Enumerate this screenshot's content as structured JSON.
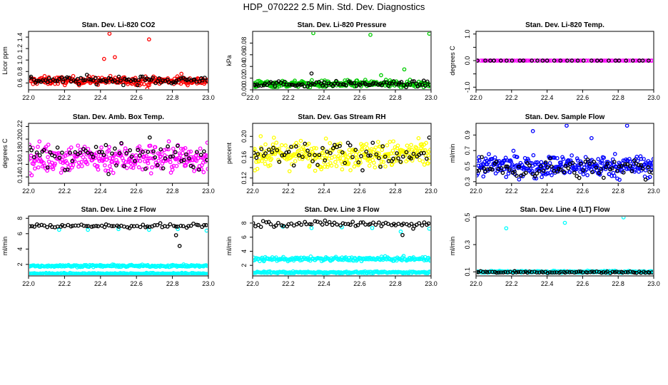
{
  "main_title": "HDP_070222  2.5 Min. Std. Dev. Diagnostics",
  "colors": {
    "black": "#000000",
    "red": "#ff0000",
    "green": "#00cc00",
    "magenta": "#ff00ff",
    "yellow": "#ffff00",
    "blue": "#0000ff",
    "cyan": "#00ffff"
  },
  "chart_data": [
    {
      "type": "scatter",
      "title": "Stan. Dev. Li-820 CO2",
      "ylabel": "Licor ppm",
      "xlim": [
        22.0,
        23.0
      ],
      "ylim": [
        0.48,
        1.5
      ],
      "xticks": [
        22.0,
        22.2,
        22.4,
        22.6,
        22.8,
        23.0
      ],
      "xtick_labels": [
        "22.0",
        "22.2",
        "22.4",
        "22.6",
        "22.8",
        "23.0"
      ],
      "yticks": [
        0.6,
        0.8,
        1.0,
        1.2,
        1.4
      ],
      "ytick_labels": [
        "0.6",
        "0.8",
        "1.0",
        "1.2",
        "1.4"
      ],
      "series": [
        {
          "name": "red",
          "color": "red",
          "base": 0.64,
          "noise": 0.06,
          "n": 260,
          "outliers": [
            [
              22.45,
              1.46
            ],
            [
              22.67,
              1.36
            ],
            [
              22.48,
              1.05
            ],
            [
              22.42,
              1.02
            ],
            [
              22.85,
              0.76
            ],
            [
              22.66,
              0.5
            ]
          ]
        },
        {
          "name": "black",
          "color": "black",
          "base": 0.65,
          "noise": 0.06,
          "n": 90,
          "outliers": []
        }
      ]
    },
    {
      "type": "scatter",
      "title": "Stan. Dev. Li-820 Pressure",
      "ylabel": "kPa",
      "xlim": [
        22.0,
        23.0
      ],
      "ylim": [
        0.0,
        0.1
      ],
      "xticks": [
        22.0,
        22.2,
        22.4,
        22.6,
        22.8,
        23.0
      ],
      "xtick_labels": [
        "22.0",
        "22.2",
        "22.4",
        "22.6",
        "22.8",
        "23.0"
      ],
      "yticks": [
        0.0,
        0.02,
        0.04,
        0.06,
        0.08
      ],
      "ytick_labels": [
        "0.00",
        "0.02",
        "0.04",
        "0.06",
        "0.08"
      ],
      "series": [
        {
          "name": "green",
          "color": "green",
          "base": 0.01,
          "noise": 0.005,
          "n": 260,
          "outliers": [
            [
              22.34,
              0.097
            ],
            [
              22.66,
              0.094
            ],
            [
              22.99,
              0.096
            ],
            [
              22.85,
              0.035
            ],
            [
              22.72,
              0.025
            ]
          ]
        },
        {
          "name": "black",
          "color": "black",
          "base": 0.01,
          "noise": 0.004,
          "n": 90,
          "outliers": [
            [
              22.33,
              0.028
            ]
          ]
        }
      ]
    },
    {
      "type": "scatter",
      "title": "Stan. Dev. Li-820 Temp.",
      "ylabel": "degrees C",
      "xlim": [
        22.0,
        23.0
      ],
      "ylim": [
        -1.1,
        1.1
      ],
      "xticks": [
        22.0,
        22.2,
        22.4,
        22.6,
        22.8,
        23.0
      ],
      "xtick_labels": [
        "22.0",
        "22.2",
        "22.4",
        "22.6",
        "22.8",
        "23.0"
      ],
      "yticks": [
        -1.0,
        -0.5,
        0.0,
        0.5,
        1.0
      ],
      "ytick_labels": [
        "-1.0",
        "0.0",
        "1.0"
      ],
      "series": [
        {
          "name": "magenta",
          "color": "magenta",
          "base": 0.0,
          "noise": 0.0,
          "n": 90,
          "outliers": []
        },
        {
          "name": "black",
          "color": "black",
          "base": 0.0,
          "noise": 0.0,
          "n": 30,
          "outliers": []
        }
      ]
    },
    {
      "type": "scatter",
      "title": "Stan. Dev. Amb. Box Temp.",
      "ylabel": "degrees C",
      "xlim": [
        22.0,
        23.0
      ],
      "ylim": [
        0.13,
        0.225
      ],
      "xticks": [
        22.0,
        22.2,
        22.4,
        22.6,
        22.8,
        23.0
      ],
      "xtick_labels": [
        "22.0",
        "22.2",
        "22.4",
        "22.6",
        "22.8",
        "23.0"
      ],
      "yticks": [
        0.14,
        0.16,
        0.18,
        0.2,
        0.22
      ],
      "ytick_labels": [
        "0.14",
        "0.16",
        "0.18",
        "0.20",
        "0.22"
      ],
      "series": [
        {
          "name": "magenta",
          "color": "magenta",
          "base": 0.17,
          "noise": 0.02,
          "n": 300,
          "outliers": []
        },
        {
          "name": "black",
          "color": "black",
          "base": 0.172,
          "noise": 0.018,
          "n": 70,
          "outliers": []
        }
      ]
    },
    {
      "type": "scatter",
      "title": "Stan. Dev. Gas Stream RH",
      "ylabel": "percent",
      "xlim": [
        22.0,
        23.0
      ],
      "ylim": [
        0.11,
        0.225
      ],
      "xticks": [
        22.0,
        22.2,
        22.4,
        22.6,
        22.8,
        23.0
      ],
      "xtick_labels": [
        "22.0",
        "22.2",
        "22.4",
        "22.6",
        "22.8",
        "23.0"
      ],
      "yticks": [
        0.12,
        0.14,
        0.16,
        0.18,
        0.2
      ],
      "ytick_labels": [
        "0.12",
        "0.16",
        "0.20"
      ],
      "series": [
        {
          "name": "yellow",
          "color": "yellow",
          "base": 0.165,
          "noise": 0.022,
          "n": 320,
          "outliers": []
        },
        {
          "name": "black",
          "color": "black",
          "base": 0.165,
          "noise": 0.02,
          "n": 70,
          "outliers": []
        }
      ]
    },
    {
      "type": "scatter",
      "title": "Stan. Dev. Sample Flow",
      "ylabel": "ml/min",
      "xlim": [
        22.0,
        23.0
      ],
      "ylim": [
        0.28,
        1.05
      ],
      "xticks": [
        22.0,
        22.2,
        22.4,
        22.6,
        22.8,
        23.0
      ],
      "xtick_labels": [
        "22.0",
        "22.2",
        "22.4",
        "22.6",
        "22.8",
        "23.0"
      ],
      "yticks": [
        0.3,
        0.5,
        0.7,
        0.9
      ],
      "ytick_labels": [
        "0.3",
        "0.5",
        "0.7",
        "0.9"
      ],
      "series": [
        {
          "name": "blue",
          "color": "blue",
          "base": 0.5,
          "noise": 0.12,
          "n": 320,
          "outliers": [
            [
              22.32,
              0.95
            ],
            [
              22.51,
              1.02
            ],
            [
              22.85,
              1.02
            ],
            [
              22.65,
              0.86
            ]
          ]
        },
        {
          "name": "black",
          "color": "black",
          "base": 0.47,
          "noise": 0.11,
          "n": 80,
          "outliers": []
        }
      ]
    },
    {
      "type": "scatter",
      "title": "Stan. Dev. Line 2 Flow",
      "ylabel": "ml/min",
      "xlim": [
        22.0,
        23.0
      ],
      "ylim": [
        0.5,
        8.3
      ],
      "xticks": [
        22.0,
        22.2,
        22.4,
        22.6,
        22.8,
        23.0
      ],
      "xtick_labels": [
        "22.0",
        "22.2",
        "22.4",
        "22.6",
        "22.8",
        "23.0"
      ],
      "yticks": [
        2,
        4,
        6,
        8
      ],
      "ytick_labels": [
        "2",
        "4",
        "6",
        "8"
      ],
      "series": [
        {
          "name": "cyan-upper",
          "color": "cyan",
          "base": 1.8,
          "noise": 0.12,
          "n": 200,
          "outliers": [
            [
              22.17,
              6.5
            ],
            [
              22.33,
              6.5
            ],
            [
              22.5,
              6.6
            ],
            [
              22.67,
              6.5
            ],
            [
              22.83,
              6.6
            ],
            [
              22.99,
              6.4
            ]
          ]
        },
        {
          "name": "cyan-lower",
          "color": "cyan",
          "base": 0.8,
          "noise": 0.08,
          "n": 200,
          "outliers": []
        },
        {
          "name": "black",
          "color": "black",
          "base": 7.0,
          "noise": 0.25,
          "n": 70,
          "outliers": [
            [
              22.84,
              4.4
            ],
            [
              22.82,
              5.8
            ]
          ]
        }
      ]
    },
    {
      "type": "scatter",
      "title": "Stan. Dev. Line 3 Flow",
      "ylabel": "ml/min",
      "xlim": [
        22.0,
        23.0
      ],
      "ylim": [
        0.5,
        9.0
      ],
      "xticks": [
        22.0,
        22.2,
        22.4,
        22.6,
        22.8,
        23.0
      ],
      "xtick_labels": [
        "22.0",
        "22.2",
        "22.4",
        "22.6",
        "22.8",
        "23.0"
      ],
      "yticks": [
        2,
        4,
        6,
        8
      ],
      "ytick_labels": [
        "2",
        "4",
        "6",
        "8"
      ],
      "series": [
        {
          "name": "cyan-upper",
          "color": "cyan",
          "base": 2.9,
          "noise": 0.25,
          "n": 200,
          "outliers": [
            [
              22.17,
              7.5
            ],
            [
              22.33,
              7.3
            ],
            [
              22.5,
              7.4
            ],
            [
              22.67,
              7.3
            ],
            [
              22.83,
              6.8
            ],
            [
              22.99,
              7.2
            ]
          ]
        },
        {
          "name": "cyan-lower",
          "color": "cyan",
          "base": 1.0,
          "noise": 0.12,
          "n": 200,
          "outliers": []
        },
        {
          "name": "black",
          "color": "black",
          "base": 7.9,
          "noise": 0.35,
          "n": 70,
          "outliers": [
            [
              22.84,
              6.3
            ],
            [
              22.9,
              7.2
            ]
          ]
        }
      ]
    },
    {
      "type": "scatter",
      "title": "Stan. Dev. Line 4 (LT) Flow",
      "ylabel": "ml/min",
      "xlim": [
        22.0,
        23.0
      ],
      "ylim": [
        0.07,
        0.51
      ],
      "xticks": [
        22.0,
        22.2,
        22.4,
        22.6,
        22.8,
        23.0
      ],
      "xtick_labels": [
        "22.0",
        "22.2",
        "22.4",
        "22.6",
        "22.8",
        "23.0"
      ],
      "yticks": [
        0.1,
        0.3,
        0.5
      ],
      "ytick_labels": [
        "0.1",
        "0.3",
        "0.5"
      ],
      "series": [
        {
          "name": "cyan",
          "color": "cyan",
          "base": 0.1,
          "noise": 0.006,
          "n": 260,
          "outliers": [
            [
              22.17,
              0.42
            ],
            [
              22.5,
              0.46
            ],
            [
              22.83,
              0.5
            ]
          ]
        },
        {
          "name": "black",
          "color": "black",
          "base": 0.098,
          "noise": 0.006,
          "n": 80,
          "outliers": []
        }
      ]
    }
  ]
}
